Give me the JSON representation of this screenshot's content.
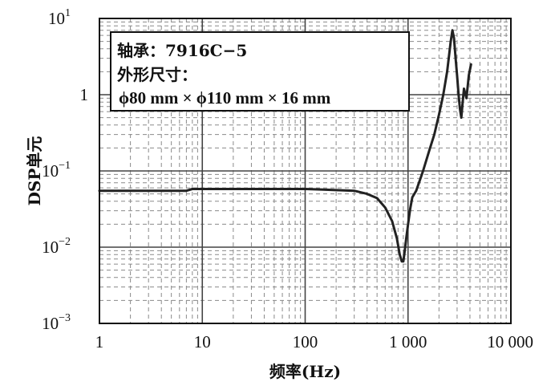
{
  "chart_data": {
    "type": "line",
    "xscale": "log",
    "yscale": "log",
    "xlim": [
      1,
      10000
    ],
    "ylim": [
      0.001,
      10
    ],
    "xlabel": "频率(Hz)",
    "ylabel": "DSP单元",
    "grid": true,
    "x_ticks": [
      {
        "value": 1,
        "label": "1"
      },
      {
        "value": 10,
        "label": "10"
      },
      {
        "value": 100,
        "label": "100"
      },
      {
        "value": 1000,
        "label": "1 000"
      },
      {
        "value": 10000,
        "label": "10 000"
      }
    ],
    "y_ticks": [
      {
        "value": 10,
        "base": "10",
        "exp": "1"
      },
      {
        "value": 1,
        "base": "1",
        "exp": ""
      },
      {
        "value": 0.1,
        "base": "10",
        "exp": "−1"
      },
      {
        "value": 0.01,
        "base": "10",
        "exp": "−2"
      },
      {
        "value": 0.001,
        "base": "10",
        "exp": "−3"
      }
    ],
    "annotation": {
      "line1": "轴承：7916C−5",
      "line2": "外形尺寸：",
      "line3": "ϕ80 mm × ϕ110 mm × 16 mm"
    },
    "series": [
      {
        "color": "#222222",
        "x": [
          1,
          2,
          5,
          7,
          8,
          10,
          20,
          50,
          100,
          150,
          200,
          300,
          400,
          500,
          600,
          700,
          780,
          830,
          870,
          900,
          930,
          960,
          1000,
          1050,
          1100,
          1200,
          1300,
          1400,
          1600,
          1800,
          2000,
          2200,
          2400,
          2600,
          2700,
          2800,
          2900,
          3000,
          3100,
          3200,
          3300,
          3400,
          3500,
          3700,
          3900,
          4100
        ],
        "y": [
          0.055,
          0.055,
          0.055,
          0.055,
          0.058,
          0.058,
          0.058,
          0.058,
          0.058,
          0.057,
          0.056,
          0.055,
          0.05,
          0.044,
          0.033,
          0.022,
          0.013,
          0.008,
          0.0065,
          0.0065,
          0.009,
          0.013,
          0.02,
          0.032,
          0.045,
          0.055,
          0.075,
          0.1,
          0.18,
          0.3,
          0.55,
          1.0,
          2.0,
          5.0,
          7.0,
          5.5,
          3.0,
          1.8,
          1.0,
          0.65,
          0.5,
          0.8,
          1.2,
          0.9,
          1.8,
          2.5
        ]
      }
    ]
  }
}
